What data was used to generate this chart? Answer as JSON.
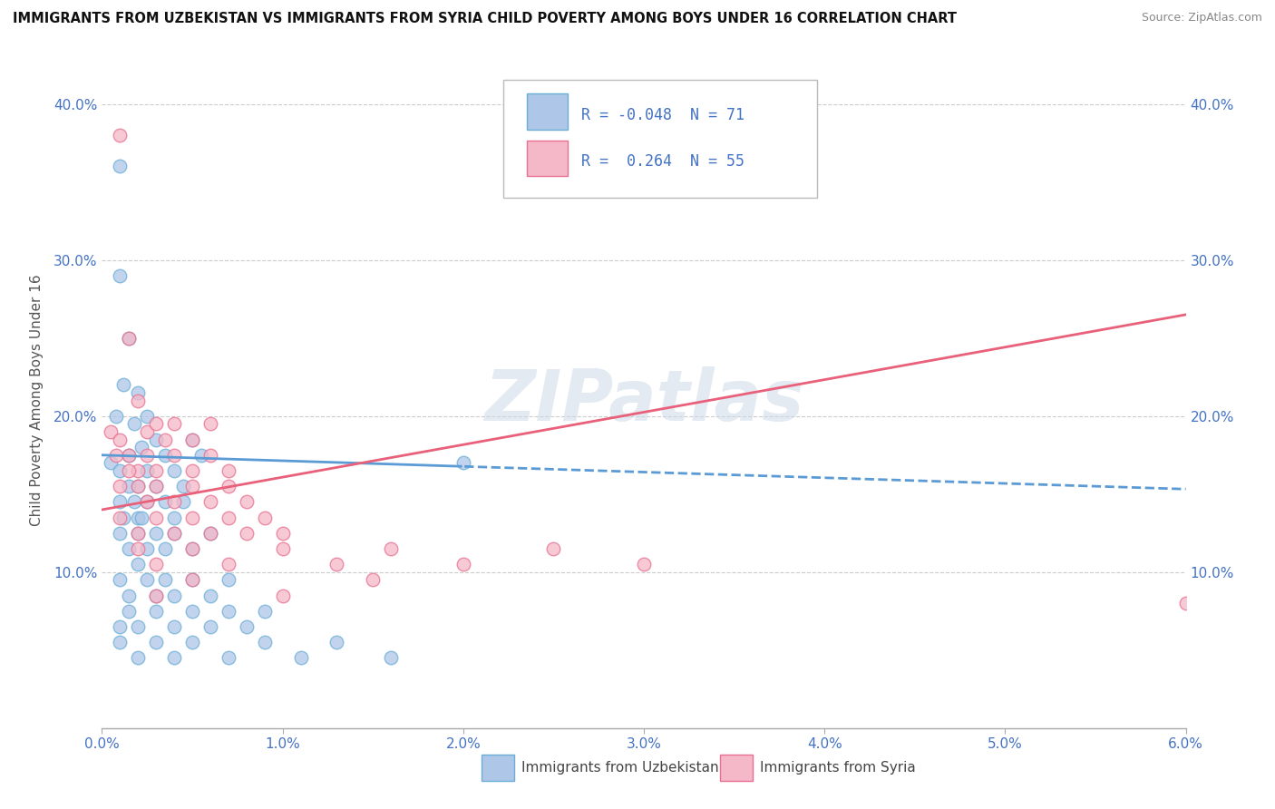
{
  "title": "IMMIGRANTS FROM UZBEKISTAN VS IMMIGRANTS FROM SYRIA CHILD POVERTY AMONG BOYS UNDER 16 CORRELATION CHART",
  "source": "Source: ZipAtlas.com",
  "ylabel": "Child Poverty Among Boys Under 16",
  "xlim": [
    0.0,
    0.06
  ],
  "ylim": [
    0.0,
    0.42
  ],
  "xticks": [
    0.0,
    0.01,
    0.02,
    0.03,
    0.04,
    0.05,
    0.06
  ],
  "xticklabels": [
    "0.0%",
    "1.0%",
    "2.0%",
    "3.0%",
    "4.0%",
    "5.0%",
    "6.0%"
  ],
  "yticks": [
    0.0,
    0.1,
    0.2,
    0.3,
    0.4
  ],
  "yticklabels": [
    "",
    "10.0%",
    "20.0%",
    "30.0%",
    "40.0%"
  ],
  "R_uzbek": -0.048,
  "N_uzbek": 71,
  "R_syria": 0.264,
  "N_syria": 55,
  "uzbek_color": "#aec6e8",
  "syria_color": "#f5b8c8",
  "uzbek_edge_color": "#6aaed6",
  "syria_edge_color": "#e87090",
  "uzbek_line_color": "#5b9bd5",
  "syria_line_color": "#e8607a",
  "watermark_color": "#cdd9e8",
  "uzbek_x": [
    0.0005,
    0.001,
    0.001,
    0.0012,
    0.0015,
    0.0008,
    0.0018,
    0.002,
    0.0022,
    0.0025,
    0.001,
    0.0015,
    0.002,
    0.0025,
    0.003,
    0.0035,
    0.004,
    0.0045,
    0.005,
    0.0055,
    0.001,
    0.0012,
    0.0015,
    0.0018,
    0.002,
    0.0025,
    0.003,
    0.0035,
    0.004,
    0.0045,
    0.001,
    0.0015,
    0.002,
    0.0022,
    0.0025,
    0.003,
    0.0035,
    0.004,
    0.005,
    0.006,
    0.001,
    0.0015,
    0.002,
    0.0025,
    0.003,
    0.0035,
    0.004,
    0.005,
    0.006,
    0.007,
    0.001,
    0.0015,
    0.002,
    0.003,
    0.004,
    0.005,
    0.006,
    0.007,
    0.008,
    0.009,
    0.001,
    0.002,
    0.003,
    0.004,
    0.005,
    0.007,
    0.009,
    0.011,
    0.013,
    0.016,
    0.02
  ],
  "uzbek_y": [
    0.17,
    0.36,
    0.29,
    0.22,
    0.25,
    0.2,
    0.195,
    0.215,
    0.18,
    0.2,
    0.165,
    0.175,
    0.155,
    0.165,
    0.185,
    0.175,
    0.165,
    0.155,
    0.185,
    0.175,
    0.145,
    0.135,
    0.155,
    0.145,
    0.135,
    0.145,
    0.155,
    0.145,
    0.135,
    0.145,
    0.125,
    0.115,
    0.125,
    0.135,
    0.115,
    0.125,
    0.115,
    0.125,
    0.115,
    0.125,
    0.095,
    0.085,
    0.105,
    0.095,
    0.085,
    0.095,
    0.085,
    0.095,
    0.085,
    0.095,
    0.065,
    0.075,
    0.065,
    0.075,
    0.065,
    0.075,
    0.065,
    0.075,
    0.065,
    0.075,
    0.055,
    0.045,
    0.055,
    0.045,
    0.055,
    0.045,
    0.055,
    0.045,
    0.055,
    0.045,
    0.17
  ],
  "syria_x": [
    0.0005,
    0.001,
    0.0015,
    0.002,
    0.0025,
    0.003,
    0.0035,
    0.004,
    0.005,
    0.006,
    0.0008,
    0.001,
    0.0015,
    0.002,
    0.0025,
    0.003,
    0.004,
    0.005,
    0.006,
    0.007,
    0.001,
    0.0015,
    0.002,
    0.0025,
    0.003,
    0.004,
    0.005,
    0.006,
    0.007,
    0.008,
    0.001,
    0.002,
    0.003,
    0.004,
    0.005,
    0.006,
    0.007,
    0.008,
    0.009,
    0.01,
    0.002,
    0.003,
    0.005,
    0.007,
    0.01,
    0.013,
    0.016,
    0.02,
    0.025,
    0.03,
    0.003,
    0.005,
    0.01,
    0.015,
    0.06
  ],
  "syria_y": [
    0.19,
    0.38,
    0.25,
    0.21,
    0.19,
    0.195,
    0.185,
    0.195,
    0.185,
    0.195,
    0.175,
    0.185,
    0.175,
    0.165,
    0.175,
    0.165,
    0.175,
    0.165,
    0.175,
    0.165,
    0.155,
    0.165,
    0.155,
    0.145,
    0.155,
    0.145,
    0.155,
    0.145,
    0.155,
    0.145,
    0.135,
    0.125,
    0.135,
    0.125,
    0.135,
    0.125,
    0.135,
    0.125,
    0.135,
    0.125,
    0.115,
    0.105,
    0.115,
    0.105,
    0.115,
    0.105,
    0.115,
    0.105,
    0.115,
    0.105,
    0.085,
    0.095,
    0.085,
    0.095,
    0.08
  ]
}
